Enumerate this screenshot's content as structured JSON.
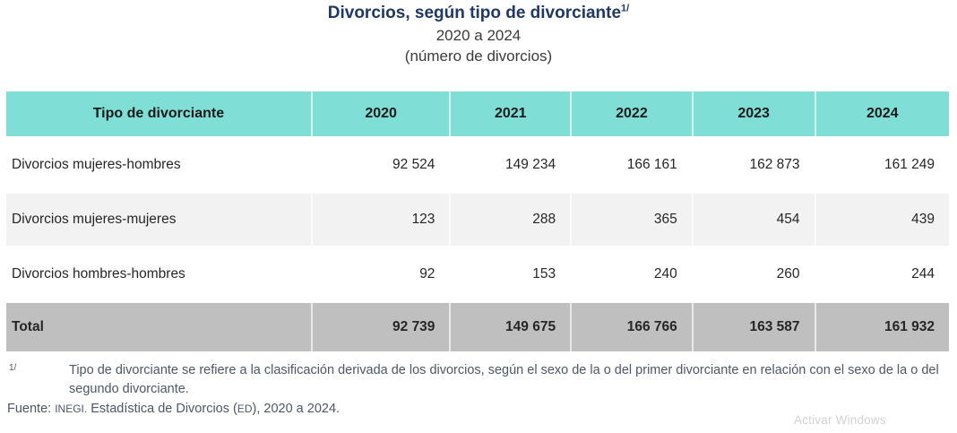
{
  "header": {
    "title": "Divorcios, según tipo de divorciante",
    "title_footnote_marker": "1/",
    "subtitle": "2020 a 2024",
    "unit_line": "(número de divorcios)"
  },
  "table": {
    "columns": [
      "Tipo de divorciante",
      "2020",
      "2021",
      "2022",
      "2023",
      "2024"
    ],
    "rows": [
      {
        "label": "Divorcios mujeres-hombres",
        "values": [
          "92 524",
          "149 234",
          "166 161",
          "162 873",
          "161 249"
        ]
      },
      {
        "label": "Divorcios mujeres-mujeres",
        "values": [
          "123",
          "288",
          "365",
          "454",
          "439"
        ]
      },
      {
        "label": "Divorcios hombres-hombres",
        "values": [
          "92",
          "153",
          "240",
          "260",
          "244"
        ]
      }
    ],
    "total": {
      "label": "Total",
      "values": [
        "92 739",
        "149 675",
        "166 766",
        "163 587",
        "161 932"
      ]
    }
  },
  "notes": {
    "marker": "1/",
    "text": "Tipo de divorciante se refiere a la clasificación derivada de los divorcios, según el sexo de la o del primer divorciante en relación con el sexo de la o del segundo divorciante.",
    "source_prefix": "Fuente:",
    "source_org": "INEGI.",
    "source_text_a": "Estadística de Divorcios (",
    "source_abbr": "ED",
    "source_text_b": "), 2020 a 2024."
  },
  "watermark": "Activar Windows",
  "colors": {
    "header_teal": "#7FDED6",
    "row_alt_gray": "#F2F2F2",
    "total_gray": "#BFBFBF",
    "title_navy": "#1F3864",
    "note_text": "#4D5766",
    "watermark_gray": "#D2D2D2"
  },
  "chart_data": {
    "type": "table",
    "title": "Divorcios, según tipo de divorciante",
    "subtitle": "2020 a 2024",
    "unit": "número de divorcios",
    "categories": [
      "2020",
      "2021",
      "2022",
      "2023",
      "2024"
    ],
    "series": [
      {
        "name": "Divorcios mujeres-hombres",
        "values": [
          92524,
          149234,
          166161,
          162873,
          161249
        ]
      },
      {
        "name": "Divorcios mujeres-mujeres",
        "values": [
          123,
          288,
          365,
          454,
          439
        ]
      },
      {
        "name": "Divorcios hombres-hombres",
        "values": [
          92,
          153,
          240,
          260,
          244
        ]
      },
      {
        "name": "Total",
        "values": [
          92739,
          149675,
          166766,
          163587,
          161932
        ]
      }
    ]
  }
}
